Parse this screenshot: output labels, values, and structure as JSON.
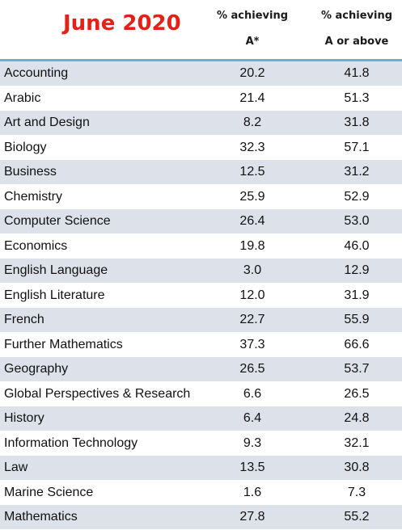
{
  "header": {
    "title": "June 2020",
    "col_astar_line1": "% achieving",
    "col_astar_line2": "A*",
    "col_a_line1": "% achieving",
    "col_a_line2": "A or above"
  },
  "colors": {
    "title": "#e32119",
    "rule": "#5fb3dd",
    "row_shade": "#dde1ea"
  },
  "rows": [
    {
      "subject": "Accounting",
      "astar": "20.2",
      "a_or_above": "41.8"
    },
    {
      "subject": "Arabic",
      "astar": "21.4",
      "a_or_above": "51.3"
    },
    {
      "subject": "Art and Design",
      "astar": "8.2",
      "a_or_above": "31.8"
    },
    {
      "subject": "Biology",
      "astar": "32.3",
      "a_or_above": "57.1"
    },
    {
      "subject": "Business",
      "astar": "12.5",
      "a_or_above": "31.2"
    },
    {
      "subject": "Chemistry",
      "astar": "25.9",
      "a_or_above": "52.9"
    },
    {
      "subject": "Computer Science",
      "astar": "26.4",
      "a_or_above": "53.0"
    },
    {
      "subject": "Economics",
      "astar": "19.8",
      "a_or_above": "46.0"
    },
    {
      "subject": "English Language",
      "astar": "3.0",
      "a_or_above": "12.9"
    },
    {
      "subject": "English Literature",
      "astar": "12.0",
      "a_or_above": "31.9"
    },
    {
      "subject": "French",
      "astar": "22.7",
      "a_or_above": "55.9"
    },
    {
      "subject": "Further Mathematics",
      "astar": "37.3",
      "a_or_above": "66.6"
    },
    {
      "subject": "Geography",
      "astar": "26.5",
      "a_or_above": "53.7"
    },
    {
      "subject": "Global Perspectives & Research",
      "astar": "6.6",
      "a_or_above": "26.5"
    },
    {
      "subject": "History",
      "astar": "6.4",
      "a_or_above": "24.8"
    },
    {
      "subject": "Information Technology",
      "astar": "9.3",
      "a_or_above": "32.1"
    },
    {
      "subject": "Law",
      "astar": "13.5",
      "a_or_above": "30.8"
    },
    {
      "subject": "Marine Science",
      "astar": "1.6",
      "a_or_above": "7.3"
    },
    {
      "subject": "Mathematics",
      "astar": "27.8",
      "a_or_above": "55.2"
    }
  ]
}
